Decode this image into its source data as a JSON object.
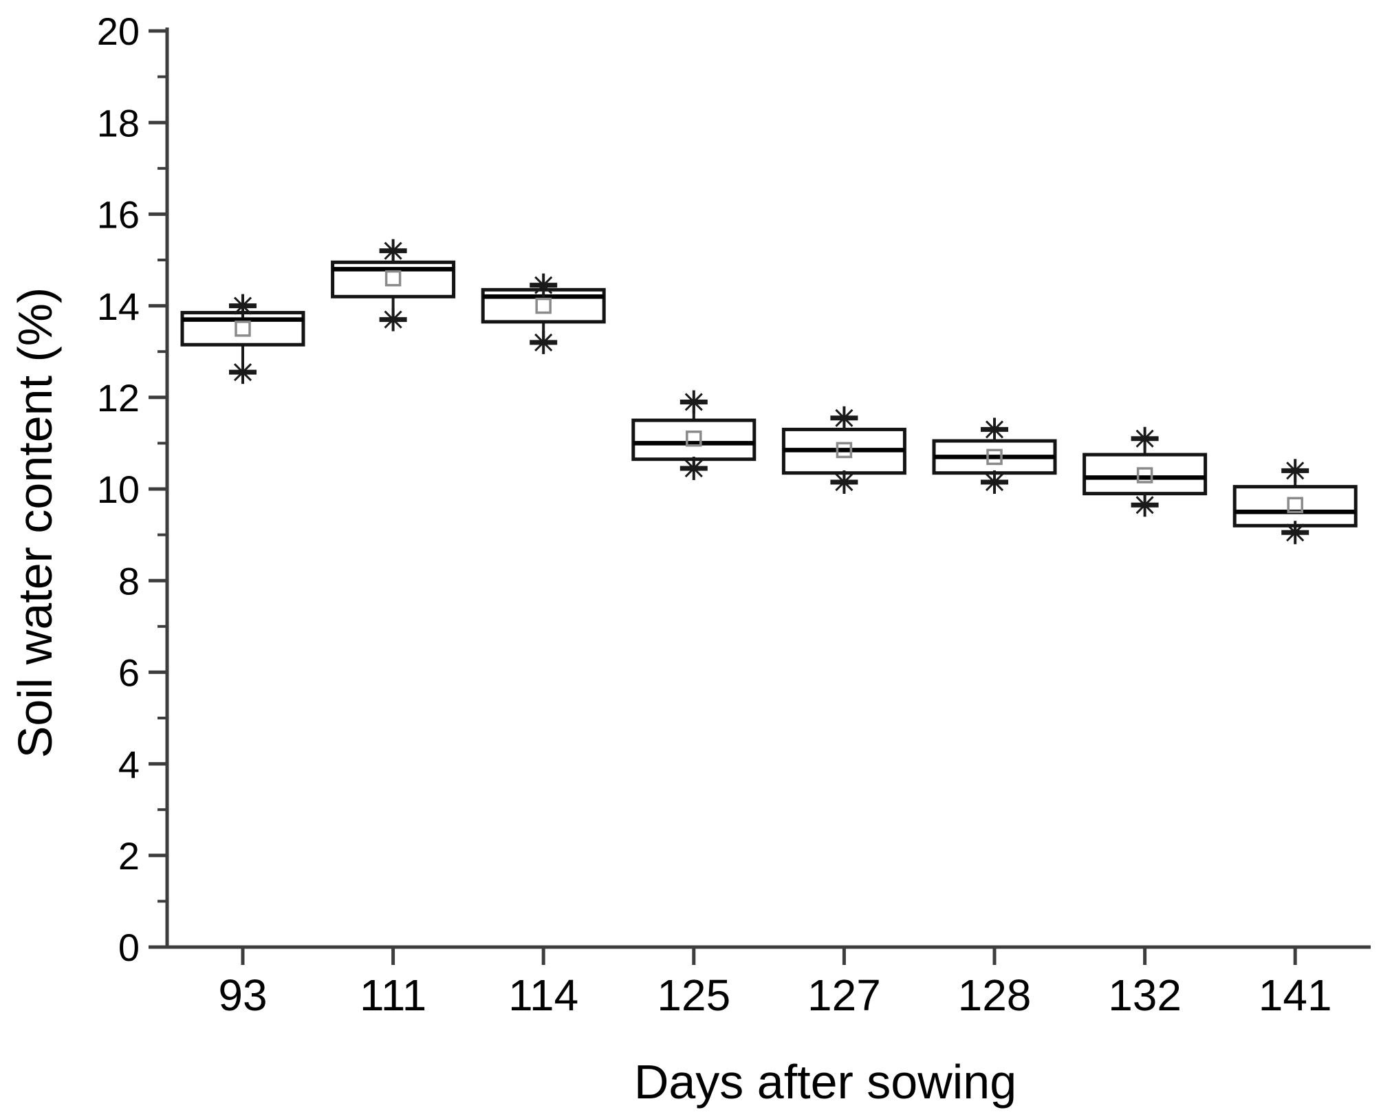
{
  "chart_data": {
    "type": "box",
    "title": "",
    "xlabel": "Days after sowing",
    "ylabel": "Soil water content (%)",
    "ylim": [
      0,
      20
    ],
    "ytick_step": 2,
    "yminor_step": 1,
    "ytick_labels": [
      "0",
      "2",
      "4",
      "6",
      "8",
      "10",
      "12",
      "14",
      "16",
      "18",
      "20"
    ],
    "grid": false,
    "legend": "none",
    "categories": [
      "93",
      "111",
      "114",
      "125",
      "127",
      "128",
      "132",
      "141"
    ],
    "boxes": [
      {
        "label": "93",
        "whisker_low": 12.55,
        "q1": 13.15,
        "median": 13.7,
        "mean": 13.5,
        "q3": 13.85,
        "whisker_high": 14.0
      },
      {
        "label": "111",
        "whisker_low": 13.7,
        "q1": 14.2,
        "median": 14.8,
        "mean": 14.6,
        "q3": 14.95,
        "whisker_high": 15.2
      },
      {
        "label": "114",
        "whisker_low": 13.2,
        "q1": 13.65,
        "median": 14.2,
        "mean": 14.0,
        "q3": 14.35,
        "whisker_high": 14.45
      },
      {
        "label": "125",
        "whisker_low": 10.45,
        "q1": 10.65,
        "median": 11.0,
        "mean": 11.1,
        "q3": 11.5,
        "whisker_high": 11.9
      },
      {
        "label": "127",
        "whisker_low": 10.15,
        "q1": 10.35,
        "median": 10.85,
        "mean": 10.85,
        "q3": 11.3,
        "whisker_high": 11.55
      },
      {
        "label": "128",
        "whisker_low": 10.15,
        "q1": 10.35,
        "median": 10.7,
        "mean": 10.7,
        "q3": 11.05,
        "whisker_high": 11.3
      },
      {
        "label": "132",
        "whisker_low": 9.65,
        "q1": 9.9,
        "median": 10.25,
        "mean": 10.3,
        "q3": 10.75,
        "whisker_high": 11.1
      },
      {
        "label": "141",
        "whisker_low": 9.05,
        "q1": 9.2,
        "median": 9.5,
        "mean": 9.65,
        "q3": 10.05,
        "whisker_high": 10.4
      }
    ],
    "whisker_end_marker": "asterisk-with-cap",
    "mean_marker": "open-square",
    "colors": {
      "background": "#ffffff",
      "axis": "#3d3d3d",
      "box_stroke": "#141414",
      "box_fill": "#ffffff",
      "median": "#000000",
      "whisker": "#1a1a1a",
      "mean_marker_stroke": "#8a8a8a"
    }
  }
}
